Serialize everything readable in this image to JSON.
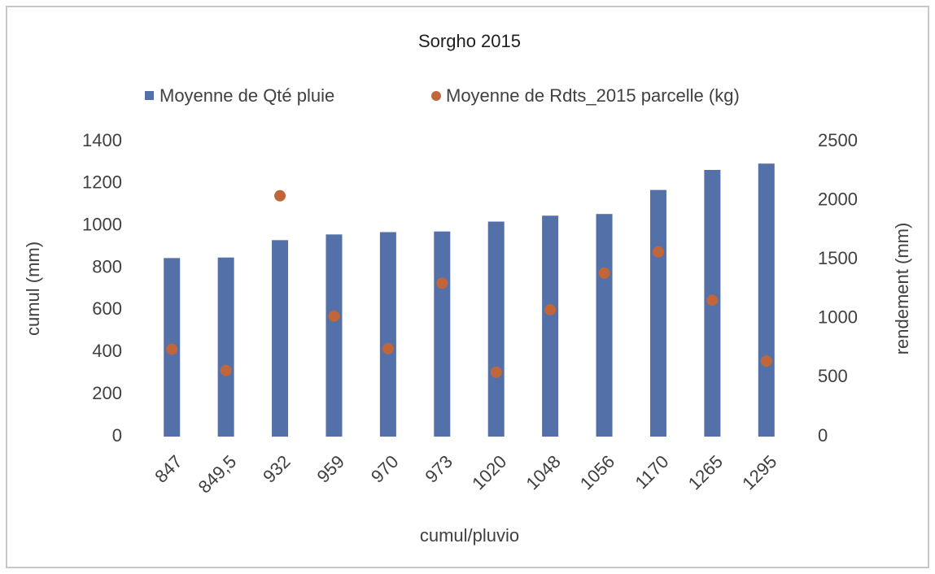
{
  "chart_data": {
    "type": "bar-scatter",
    "title": "Sorgho 2015",
    "x_label": "cumul/pluvio",
    "y_label": "cumul (mm)",
    "y2_label": "rendement (mm)",
    "categories": [
      "847",
      "849,5",
      "932",
      "959",
      "970",
      "973",
      "1020",
      "1048",
      "1056",
      "1170",
      "1265",
      "1295"
    ],
    "series": [
      {
        "name": "Moyenne de Qté pluie",
        "color": "#5470a8",
        "mark": "bar",
        "values": [
          847,
          849.5,
          932,
          959,
          970,
          973,
          1020,
          1048,
          1056,
          1170,
          1265,
          1295
        ]
      },
      {
        "name": "Moyenne de Rdts_2015 parcelle (kg)",
        "color": "#c0663a",
        "mark": "dot",
        "axis": "y2",
        "values": [
          740,
          560,
          2040,
          1020,
          745,
          1300,
          545,
          1075,
          1385,
          1565,
          1155,
          640
        ]
      }
    ],
    "ylim": [
      0,
      1400
    ],
    "yticks": [
      0,
      200,
      400,
      600,
      800,
      1000,
      1200,
      1400
    ],
    "y2lim": [
      0,
      2500
    ],
    "y2ticks": [
      0,
      500,
      1000,
      1500,
      2000,
      2500
    ]
  }
}
